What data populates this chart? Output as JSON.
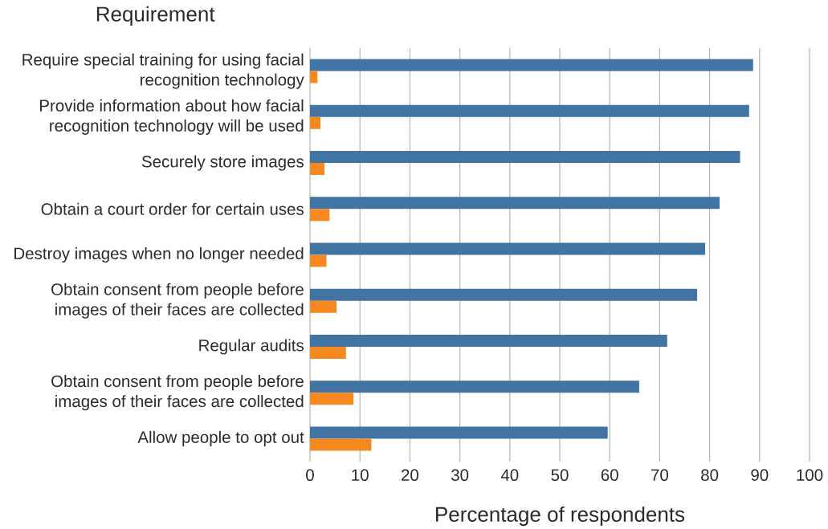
{
  "chart_data": {
    "type": "bar",
    "orientation": "horizontal",
    "ylabel": "Requirement",
    "xlabel": "Percentage of respondents",
    "categories": [
      "Require special training for using facial recognition technology",
      "Provide information about how facial recognition technology will be used",
      "Securely store images",
      "Obtain a court order for certain uses",
      "Destroy images when no longer needed",
      "Obtain consent from people before images of their faces are collected",
      "Regular audits",
      "Obtain consent from people before images of their faces are collected",
      "Allow people to opt out"
    ],
    "series": [
      {
        "color": "#4173a3",
        "values": [
          88.7,
          87.9,
          86.1,
          82.0,
          79.1,
          77.5,
          71.5,
          65.9,
          59.6
        ]
      },
      {
        "color": "#f5891f",
        "values": [
          1.5,
          2.1,
          2.9,
          3.9,
          3.3,
          5.3,
          7.2,
          8.7,
          12.3
        ]
      }
    ],
    "xlim": [
      0,
      100
    ],
    "xticks": [
      0,
      10,
      20,
      30,
      40,
      50,
      60,
      70,
      80,
      90,
      100
    ],
    "grid": "x"
  }
}
